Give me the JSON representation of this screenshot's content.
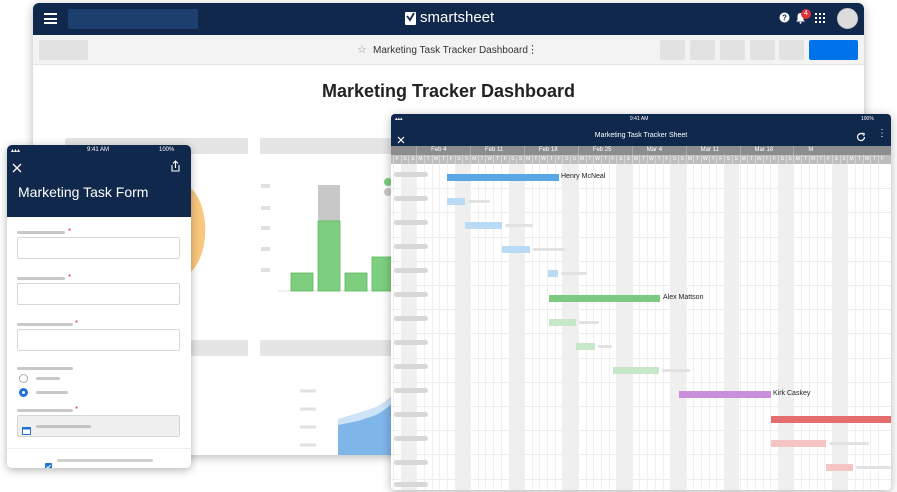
{
  "desktop": {
    "brand": "smartsheet",
    "notification_count": "4",
    "sheet_title": "Marketing Task Tracker Dashboard",
    "dashboard_heading": "Marketing Tracker Dashboard",
    "icons": {
      "menu": "hamburger-icon",
      "help": "help-icon",
      "bell": "bell-icon",
      "apps": "apps-grid-icon",
      "star": "star-icon",
      "more": "more-vertical-icon"
    },
    "accent": "#0073ea",
    "header_color": "#10284b"
  },
  "form": {
    "time": "9:41 AM",
    "battery": "100%",
    "title": "Marketing Task Form",
    "required_mark": "*",
    "icons": {
      "close": "close-icon",
      "share": "share-icon",
      "calendar": "calendar-icon",
      "checkbox": "checkbox-icon"
    }
  },
  "gantt": {
    "time": "9:41 AM",
    "battery": "100%",
    "title": "Marketing Task Tracker Sheet",
    "weeks": [
      "Feb 4",
      "Feb 11",
      "Feb 18",
      "Feb 25",
      "Mar 4",
      "Mar 11",
      "Mar 18",
      "M"
    ],
    "day_letters": [
      "F",
      "S",
      "S",
      "M",
      "T",
      "W",
      "T",
      "F",
      "S",
      "S",
      "M",
      "T",
      "W",
      "T",
      "F",
      "S",
      "S",
      "M",
      "T",
      "W",
      "T",
      "F",
      "S",
      "S",
      "M",
      "T",
      "W",
      "T",
      "F",
      "S",
      "S",
      "M",
      "T",
      "W",
      "T",
      "F",
      "S",
      "S",
      "M",
      "T",
      "W",
      "T",
      "F",
      "S",
      "S",
      "M",
      "T",
      "W",
      "T",
      "F",
      "S",
      "S",
      "M",
      "T",
      "W",
      "T",
      "F",
      "S",
      "S",
      "M",
      "T",
      "W",
      "T",
      "F"
    ],
    "assignees": [
      "Henry McNeal",
      "Alex Mattson",
      "Kirk Caskey"
    ],
    "colors": {
      "blue": "#5aa7e6",
      "light_blue": "#b9dbf6",
      "green": "#7cc981",
      "light_green": "#c6e8c8",
      "purple": "#c98fdb",
      "red": "#e56d6d",
      "pink": "#f5c4c4"
    },
    "icons": {
      "close": "close-icon",
      "refresh": "refresh-icon",
      "more": "more-vertical-icon"
    }
  }
}
